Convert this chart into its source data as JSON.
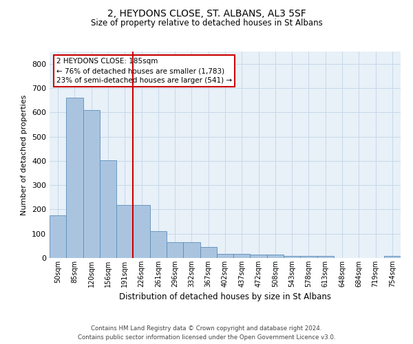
{
  "title": "2, HEYDONS CLOSE, ST. ALBANS, AL3 5SF",
  "subtitle": "Size of property relative to detached houses in St Albans",
  "xlabel": "Distribution of detached houses by size in St Albans",
  "ylabel": "Number of detached properties",
  "footer1": "Contains HM Land Registry data © Crown copyright and database right 2024.",
  "footer2": "Contains public sector information licensed under the Open Government Licence v3.0.",
  "categories": [
    "50sqm",
    "85sqm",
    "120sqm",
    "156sqm",
    "191sqm",
    "226sqm",
    "261sqm",
    "296sqm",
    "332sqm",
    "367sqm",
    "402sqm",
    "437sqm",
    "472sqm",
    "508sqm",
    "543sqm",
    "578sqm",
    "613sqm",
    "648sqm",
    "684sqm",
    "719sqm",
    "754sqm"
  ],
  "values": [
    175,
    660,
    610,
    403,
    218,
    218,
    110,
    65,
    65,
    45,
    18,
    18,
    15,
    15,
    8,
    8,
    8,
    0,
    0,
    0,
    8
  ],
  "bar_color": "#aac4e0",
  "bar_edge_color": "#5b8db8",
  "grid_color": "#c8d8e8",
  "plot_bg_color": "#e8f0f8",
  "vline_x": 4.5,
  "vline_color": "#cc0000",
  "annotation_line1": "2 HEYDONS CLOSE: 185sqm",
  "annotation_line2": "← 76% of detached houses are smaller (1,783)",
  "annotation_line3": "23% of semi-detached houses are larger (541) →",
  "annotation_box_color": "#cc0000",
  "ylim": [
    0,
    850
  ],
  "yticks": [
    0,
    100,
    200,
    300,
    400,
    500,
    600,
    700,
    800
  ]
}
